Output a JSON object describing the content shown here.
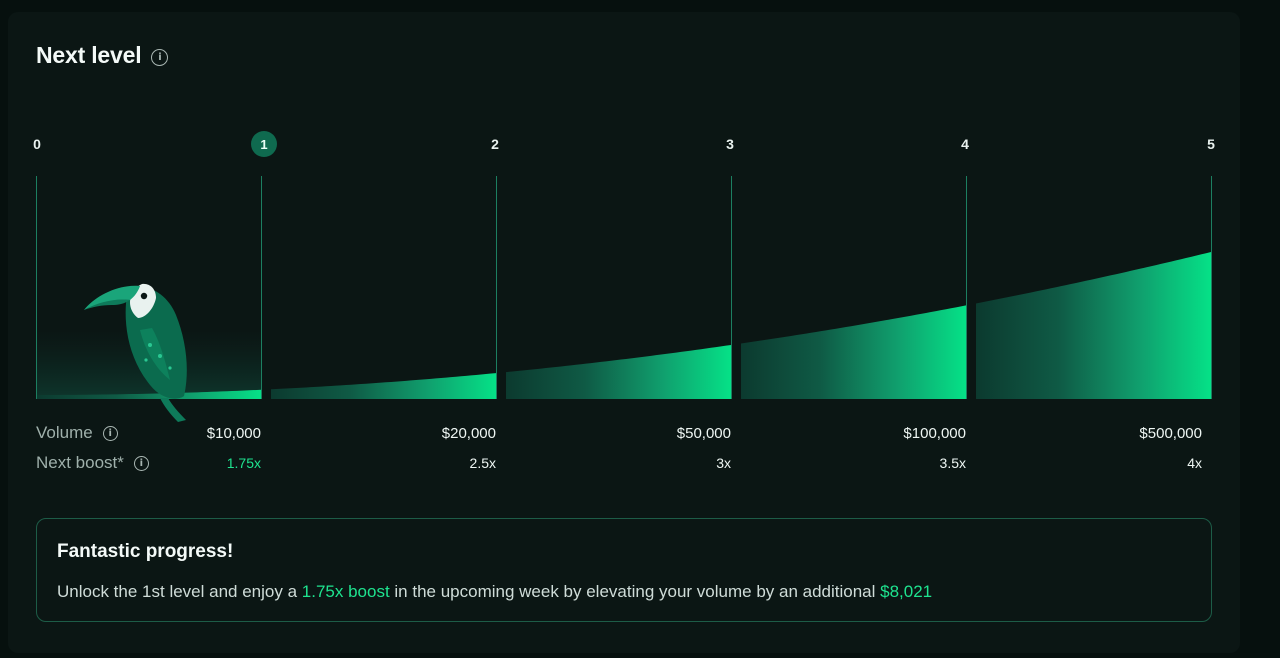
{
  "panel": {
    "title": "Next level"
  },
  "chart_data": {
    "type": "area",
    "levels": [
      "0",
      "1",
      "2",
      "3",
      "4",
      "5"
    ],
    "current_level": "1",
    "volumes": [
      "$10,000",
      "$20,000",
      "$50,000",
      "$100,000",
      "$500,000"
    ],
    "boosts": [
      "1.75x",
      "2.5x",
      "3x",
      "3.5x",
      "4x"
    ],
    "colors": {
      "accent": "#1ee38f",
      "dark": "#0f5a45",
      "line": "#1c7f61"
    }
  },
  "rows": {
    "volume_label": "Volume",
    "boost_label": "Next boost*"
  },
  "notice": {
    "title": "Fantastic progress!",
    "text_1": "Unlock the 1st level and enjoy a ",
    "highlight_1": "1.75x boost",
    "text_2": " in the upcoming week by elevating your volume by an additional ",
    "highlight_2": "$8,021"
  },
  "icons": [
    "info-icon",
    "toucan-mascot"
  ]
}
